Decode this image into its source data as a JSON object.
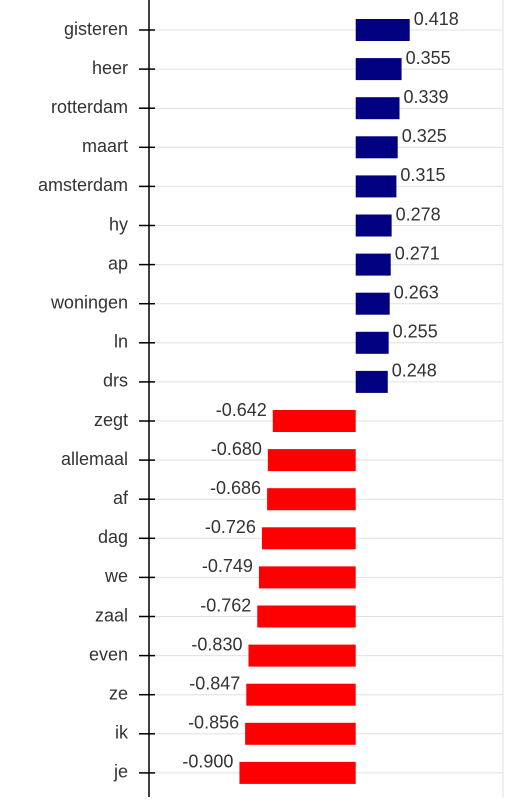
{
  "chart_data": {
    "type": "hbar",
    "categories": [
      "gisteren",
      "heer",
      "rotterdam",
      "maart",
      "amsterdam",
      "hy",
      "ap",
      "woningen",
      "ln",
      "drs",
      "zegt",
      "allemaal",
      "af",
      "dag",
      "we",
      "zaal",
      "even",
      "ze",
      "ik",
      "je"
    ],
    "values": [
      0.418,
      0.355,
      0.339,
      0.325,
      0.315,
      0.278,
      0.271,
      0.263,
      0.255,
      0.248,
      -0.642,
      -0.68,
      -0.686,
      -0.726,
      -0.749,
      -0.762,
      -0.83,
      -0.847,
      -0.856,
      -0.9
    ],
    "value_labels": [
      "0.418",
      "0.355",
      "0.339",
      "0.325",
      "0.315",
      "0.278",
      "0.271",
      "0.263",
      "0.255",
      "0.248",
      "-0.642",
      "-0.680",
      "-0.686",
      "-0.726",
      "-0.749",
      "-0.762",
      "-0.830",
      "-0.847",
      "-0.856",
      "-0.900"
    ],
    "positive_color": "#000080",
    "negative_color": "#ff0000",
    "xlim": [
      -1.6,
      1.14
    ],
    "grid": true
  }
}
